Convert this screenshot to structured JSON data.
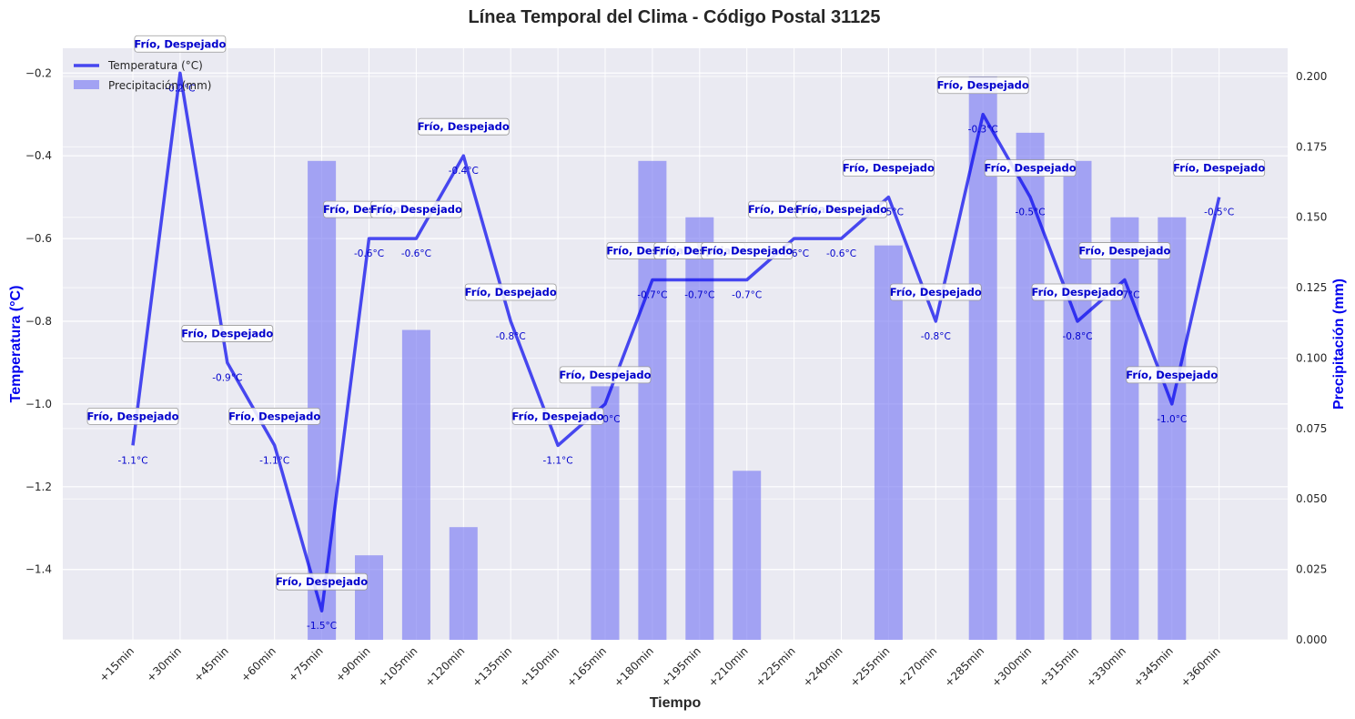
{
  "chart_data": {
    "type": "line",
    "title": "Línea Temporal del Clima - Código Postal 31125",
    "xlabel": "Tiempo",
    "ylabel": "Temperatura (°C)",
    "y2label": "Precipitación (mm)",
    "categories": [
      "+15min",
      "+30min",
      "+45min",
      "+60min",
      "+75min",
      "+90min",
      "+105min",
      "+120min",
      "+135min",
      "+150min",
      "+165min",
      "+180min",
      "+195min",
      "+210min",
      "+225min",
      "+240min",
      "+255min",
      "+270min",
      "+285min",
      "+300min",
      "+315min",
      "+330min",
      "+345min",
      "+360min"
    ],
    "ylim": [
      -1.57,
      -0.14
    ],
    "y2lim": [
      0.0,
      0.21
    ],
    "yticks": [
      -1.4,
      -1.2,
      -1.0,
      -0.8,
      -0.6,
      -0.4,
      -0.2
    ],
    "y2ticks": [
      0.0,
      0.025,
      0.05,
      0.075,
      0.1,
      0.125,
      0.15,
      0.175,
      0.2
    ],
    "ytick_labels": [
      "−1.4",
      "−1.2",
      "−1.0",
      "−0.8",
      "−0.6",
      "−0.4",
      "−0.2"
    ],
    "y2tick_labels": [
      "0.000",
      "0.025",
      "0.050",
      "0.075",
      "0.100",
      "0.125",
      "0.150",
      "0.175",
      "0.200"
    ],
    "grid": true,
    "legend_position": "top-left",
    "series": [
      {
        "name": "Temperatura (°C)",
        "type": "line",
        "axis": "left",
        "color": "#0000ee",
        "values": [
          -1.1,
          -0.2,
          -0.9,
          -1.1,
          -1.5,
          -0.6,
          -0.6,
          -0.4,
          -0.8,
          -1.1,
          -1.0,
          -0.7,
          -0.7,
          -0.7,
          -0.6,
          -0.6,
          -0.5,
          -0.8,
          -0.3,
          -0.5,
          -0.8,
          -0.7,
          -1.0,
          -0.5
        ],
        "data_labels": [
          "-1.1°C",
          "-0.2°C",
          "-0.9°C",
          "-1.1°C",
          "-1.5°C",
          "-0.6°C",
          "-0.6°C",
          "-0.4°C",
          "-0.8°C",
          "-1.1°C",
          "-1.0°C",
          "-0.7°C",
          "-0.7°C",
          "-0.7°C",
          "-0.6°C",
          "-0.6°C",
          "-0.5°C",
          "-0.8°C",
          "-0.3°C",
          "-0.5°C",
          "-0.8°C",
          "-0.7°C",
          "-1.0°C",
          "-0.5°C"
        ]
      },
      {
        "name": "Precipitación (mm)",
        "type": "bar",
        "axis": "right",
        "color": "#7b7bf2",
        "values": [
          0,
          0,
          0,
          0,
          0.17,
          0.03,
          0.11,
          0.04,
          0,
          0,
          0.09,
          0.17,
          0.15,
          0.06,
          0,
          0,
          0.14,
          0,
          0.2,
          0.18,
          0.17,
          0.15,
          0.15,
          0
        ]
      }
    ],
    "annotations": [
      "Frío, Despejado",
      "Frío, Despejado",
      "Frío, Despejado",
      "Frío, Despejado",
      "Frío, Despejado",
      "Frío, Despejado",
      "Frío, Despejado",
      "Frío, Despejado",
      "Frío, Despejado",
      "Frío, Despejado",
      "Frío, Despejado",
      "Frío, Despejado",
      "Frío, Despejado",
      "Frío, Despejado",
      "Frío, Despejado",
      "Frío, Despejado",
      "Frío, Despejado",
      "Frío, Despejado",
      "Frío, Despejado",
      "Frío, Despejado",
      "Frío, Despejado",
      "Frío, Despejado",
      "Frío, Despejado",
      "Frío, Despejado"
    ],
    "colors": {
      "plot_background": "#eaeaf2",
      "grid": "#ffffff",
      "line": "#0000ee",
      "bar": "#7b7bf2",
      "annotation_text": "#0000cc",
      "left_axis_label": "#0000ee",
      "right_axis_label": "#0000ee"
    }
  }
}
